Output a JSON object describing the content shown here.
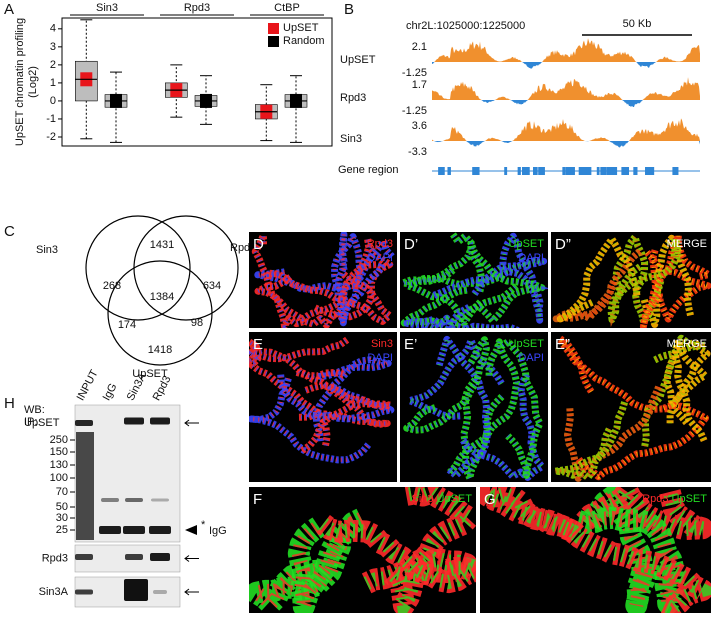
{
  "chart_data": {
    "type": "box",
    "panel_label": "A",
    "y_label": [
      "UpSET chromatin profiling",
      "(Log2)"
    ],
    "categories": [
      "Sin3",
      "Rpd3",
      "CtBP"
    ],
    "series": [
      {
        "name": "UpSET",
        "color": "#e8151b",
        "values": [
          {
            "min": -2.1,
            "q1": 0.0,
            "median": 1.2,
            "q3": 2.2,
            "max": 4.5
          },
          {
            "min": -0.9,
            "q1": 0.2,
            "median": 0.6,
            "q3": 1.0,
            "max": 2.0
          },
          {
            "min": -2.2,
            "q1": -1.0,
            "median": -0.6,
            "q3": -0.2,
            "max": 0.9
          }
        ]
      },
      {
        "name": "Random",
        "color": "#000000",
        "values": [
          {
            "min": -2.3,
            "q1": -0.35,
            "median": 0.0,
            "q3": 0.35,
            "max": 1.6
          },
          {
            "min": -1.3,
            "q1": -0.3,
            "median": 0.0,
            "q3": 0.3,
            "max": 1.4
          },
          {
            "min": -2.3,
            "q1": -0.35,
            "median": 0.0,
            "q3": 0.35,
            "max": 1.4
          }
        ]
      }
    ],
    "ylim": [
      -2.5,
      4.6
    ],
    "yticks": [
      -2,
      -1,
      0,
      1,
      2,
      3,
      4
    ],
    "legend": "upper right"
  },
  "genome_browser": {
    "panel_label": "B",
    "locus": "chr2L:1025000:1225000",
    "scale_bar": "50 Kb",
    "tracks": [
      {
        "name": "UpSET",
        "max": 2.1,
        "min": -1.25
      },
      {
        "name": "Rpd3",
        "max": 1.7,
        "min": -1.25
      },
      {
        "name": "Sin3",
        "max": 3.6,
        "min": -3.3
      }
    ],
    "gene_track": "Gene region"
  },
  "venn": {
    "panel_label": "C",
    "sets": [
      "Sin3",
      "Rpd3",
      "UpSET"
    ],
    "counts": {
      "sin3_rpd3": 1431,
      "sin3_only": 268,
      "rpd3_only": 634,
      "all": 1384,
      "sin3_upset": 174,
      "rpd3_upset": 98,
      "upset_only": 1418
    }
  },
  "microscopy": [
    {
      "label": "D",
      "channels": [
        {
          "text": "Rpd3",
          "color": "#ff2a2a"
        },
        {
          "text": "DAPI",
          "color": "#3a46ff"
        }
      ]
    },
    {
      "label": "D’",
      "channels": [
        {
          "text": "UpSET",
          "color": "#22dd22"
        },
        {
          "text": "DAPI",
          "color": "#3a46ff"
        }
      ]
    },
    {
      "label": "D”",
      "channels": [
        {
          "text": "MERGE",
          "color": "#ffffff"
        }
      ]
    },
    {
      "label": "E",
      "channels": [
        {
          "text": "Sin3",
          "color": "#ff2a2a"
        },
        {
          "text": "DAPI",
          "color": "#3a46ff"
        }
      ]
    },
    {
      "label": "E’",
      "channels": [
        {
          "text": "UpSET",
          "color": "#22dd22"
        },
        {
          "text": "DAPI",
          "color": "#3a46ff"
        }
      ]
    },
    {
      "label": "E”",
      "channels": [
        {
          "text": "MERGE",
          "color": "#ffffff"
        }
      ]
    },
    {
      "label": "F",
      "channels": [
        {
          "text": "Sin3",
          "color": "#ff2a2a"
        },
        {
          "text": "UpSET",
          "color": "#22dd22"
        }
      ]
    },
    {
      "label": "G",
      "channels": [
        {
          "text": "Rpd3",
          "color": "#ff2a2a"
        },
        {
          "text": "UpSET",
          "color": "#22dd22"
        }
      ]
    }
  ],
  "western": {
    "panel_label": "H",
    "ip_label": "IP:",
    "lanes": [
      "INPUT",
      "IgG",
      "Sin3A",
      "Rpd3"
    ],
    "wb_label": "WB:",
    "blots": [
      "UpSET",
      "Rpd3",
      "Sin3A"
    ],
    "markers": [
      250,
      150,
      130,
      100,
      70,
      50,
      30,
      25
    ],
    "asterisk": "*",
    "igg_label": "IgG"
  }
}
